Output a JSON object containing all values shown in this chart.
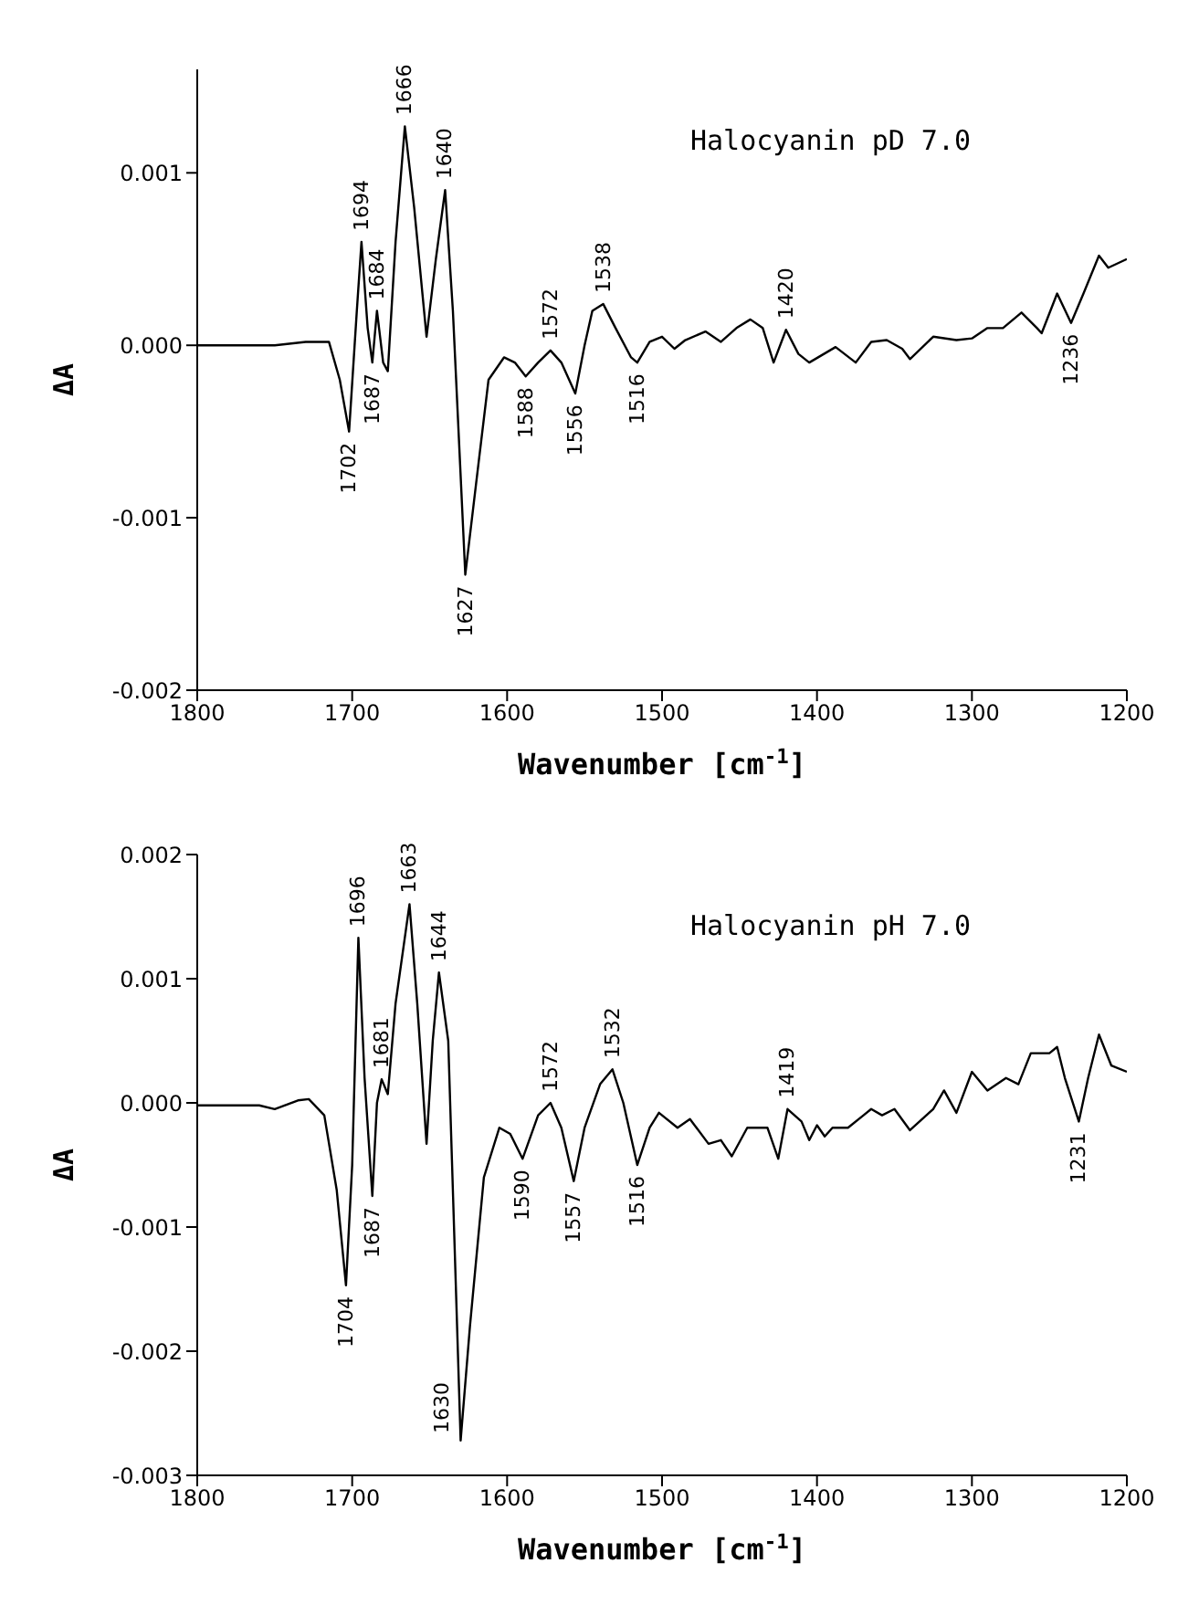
{
  "chart_data": [
    {
      "type": "line",
      "xlabel": "Wavenumber [cm$^{-1}$]",
      "ylabel": "ΔA",
      "xlim": [
        1800,
        1200
      ],
      "xticks": [
        1800,
        1700,
        1600,
        1500,
        1400,
        1300,
        1200
      ],
      "ylim": [
        -0.002,
        0.0016
      ],
      "yticks": [
        {
          "value": -0.002,
          "label": "-0.002"
        },
        {
          "value": -0.001,
          "label": "-0.001"
        },
        {
          "value": 0,
          "label": "0.000"
        },
        {
          "value": 0.001,
          "label": "0.001"
        }
      ],
      "series": [
        {
          "color": "#000000",
          "x": [
            1800,
            1750,
            1730,
            1715,
            1708,
            1702,
            1697,
            1694,
            1690,
            1687,
            1684,
            1680,
            1677,
            1672,
            1666,
            1660,
            1652,
            1646,
            1640,
            1635,
            1627,
            1620,
            1612,
            1602,
            1595,
            1588,
            1580,
            1572,
            1565,
            1556,
            1550,
            1545,
            1538,
            1530,
            1520,
            1516,
            1508,
            1500,
            1492,
            1485,
            1472,
            1462,
            1452,
            1443,
            1435,
            1428,
            1420,
            1412,
            1405,
            1388,
            1375,
            1365,
            1355,
            1345,
            1340,
            1325,
            1310,
            1300,
            1290,
            1280,
            1268,
            1258,
            1255,
            1245,
            1236,
            1228,
            1218,
            1212,
            1200
          ],
          "values": [
            0,
            0,
            2e-05,
            2e-05,
            -0.0002,
            -0.0005,
            0.0002,
            0.0006,
            0.0001,
            -0.0001,
            0.0002,
            -0.0001,
            -0.00015,
            0.0006,
            0.00127,
            0.0008,
            5e-05,
            0.0005,
            0.0009,
            0.0002,
            -0.00133,
            -0.0008,
            -0.0002,
            -7e-05,
            -0.0001,
            -0.00018,
            -0.0001,
            -3e-05,
            -0.0001,
            -0.00028,
            0,
            0.0002,
            0.00024,
            0.0001,
            -7e-05,
            -0.0001,
            2e-05,
            5e-05,
            -2e-05,
            3e-05,
            8e-05,
            2e-05,
            0.0001,
            0.00015,
            0.0001,
            -0.0001,
            9e-05,
            -5e-05,
            -0.0001,
            -1e-05,
            -0.0001,
            2e-05,
            3e-05,
            -2e-05,
            -8e-05,
            5e-05,
            3e-05,
            4e-05,
            0.0001,
            0.0001,
            0.00019,
            0.0001,
            7e-05,
            0.0003,
            0.00013,
            0.0003,
            0.00052,
            0.00045,
            0.0005
          ]
        }
      ],
      "annotations": [
        "Halocyanin pD 7.0",
        {
          "text": "1702",
          "x": 1702,
          "y": -0.0005
        },
        {
          "text": "1694",
          "x": 1694,
          "y": 0.0006
        },
        {
          "text": "1687",
          "x": 1687,
          "y": -0.0001
        },
        {
          "text": "1684",
          "x": 1684,
          "y": 0.0002
        },
        {
          "text": "1666",
          "x": 1666,
          "y": 0.00127
        },
        {
          "text": "1640",
          "x": 1640,
          "y": 0.0009
        },
        {
          "text": "1627",
          "x": 1627,
          "y": -0.00133
        },
        {
          "text": "1588",
          "x": 1588,
          "y": -0.00018
        },
        {
          "text": "1572",
          "x": 1572,
          "y": -3e-05
        },
        {
          "text": "1556",
          "x": 1556,
          "y": -0.00028
        },
        {
          "text": "1538",
          "x": 1538,
          "y": 0.00024
        },
        {
          "text": "1516",
          "x": 1516,
          "y": -0.0001
        },
        {
          "text": "1420",
          "x": 1420,
          "y": 9e-05
        },
        {
          "text": "1236",
          "x": 1236,
          "y": 0.00013
        }
      ]
    },
    {
      "type": "line",
      "xlabel": "Wavenumber [cm$^{-1}$]",
      "ylabel": "ΔA",
      "xlim": [
        1800,
        1200
      ],
      "xticks": [
        1800,
        1700,
        1600,
        1500,
        1400,
        1300,
        1200
      ],
      "ylim": [
        -0.003,
        0.002
      ],
      "yticks": [
        {
          "value": -0.003,
          "label": "-0.003"
        },
        {
          "value": -0.002,
          "label": "-0.002"
        },
        {
          "value": -0.001,
          "label": "-0.001"
        },
        {
          "value": 0,
          "label": "0.000"
        },
        {
          "value": 0.001,
          "label": "0.001"
        },
        {
          "value": 0.002,
          "label": "0.002"
        }
      ],
      "series": [
        {
          "color": "#000000",
          "x": [
            1800,
            1760,
            1750,
            1735,
            1728,
            1718,
            1710,
            1704,
            1700,
            1696,
            1692,
            1687,
            1684,
            1681,
            1677,
            1672,
            1663,
            1658,
            1652,
            1648,
            1644,
            1638,
            1630,
            1624,
            1615,
            1605,
            1598,
            1590,
            1580,
            1572,
            1565,
            1557,
            1550,
            1540,
            1532,
            1525,
            1516,
            1508,
            1502,
            1490,
            1482,
            1470,
            1462,
            1455,
            1445,
            1432,
            1425,
            1419,
            1410,
            1405,
            1400,
            1395,
            1390,
            1380,
            1370,
            1365,
            1358,
            1350,
            1340,
            1325,
            1318,
            1310,
            1300,
            1290,
            1278,
            1270,
            1262,
            1250,
            1245,
            1240,
            1231,
            1225,
            1218,
            1210,
            1200
          ],
          "values": [
            -2e-05,
            -2e-05,
            -5e-05,
            2e-05,
            3e-05,
            -0.0001,
            -0.0007,
            -0.00147,
            -0.0005,
            0.00133,
            0.0002,
            -0.00075,
            0,
            0.00019,
            7e-05,
            0.0008,
            0.0016,
            0.0008,
            -0.00033,
            0.0005,
            0.00105,
            0.0005,
            -0.00272,
            -0.0018,
            -0.0006,
            -0.0002,
            -0.00025,
            -0.00045,
            -0.0001,
            0,
            -0.0002,
            -0.00063,
            -0.0002,
            0.00015,
            0.00027,
            0,
            -0.0005,
            -0.0002,
            -8e-05,
            -0.0002,
            -0.00013,
            -0.00033,
            -0.0003,
            -0.00043,
            -0.0002,
            -0.0002,
            -0.00045,
            -5e-05,
            -0.00015,
            -0.0003,
            -0.00018,
            -0.00027,
            -0.0002,
            -0.0002,
            -0.0001,
            -5e-05,
            -0.0001,
            -5e-05,
            -0.00022,
            -5e-05,
            0.0001,
            -8e-05,
            0.00025,
            0.0001,
            0.0002,
            0.00015,
            0.0004,
            0.0004,
            0.00045,
            0.0002,
            -0.00015,
            0.0002,
            0.00055,
            0.0003,
            0.00025
          ]
        }
      ],
      "annotations": [
        "Halocyanin pH 7.0",
        {
          "text": "1704",
          "x": 1704,
          "y": -0.00147
        },
        {
          "text": "1696",
          "x": 1696,
          "y": 0.00133
        },
        {
          "text": "1687",
          "x": 1687,
          "y": -0.00075
        },
        {
          "text": "1681",
          "x": 1681,
          "y": 0.00019
        },
        {
          "text": "1663",
          "x": 1663,
          "y": 0.0016
        },
        {
          "text": "1644",
          "x": 1644,
          "y": 0.00105
        },
        {
          "text": "1630",
          "x": 1630,
          "y": -0.00272
        },
        {
          "text": "1590",
          "x": 1590,
          "y": -0.00045
        },
        {
          "text": "1572",
          "x": 1572,
          "y": 0
        },
        {
          "text": "1557",
          "x": 1557,
          "y": -0.00063
        },
        {
          "text": "1532",
          "x": 1532,
          "y": 0.00027
        },
        {
          "text": "1516",
          "x": 1516,
          "y": -0.0005
        },
        {
          "text": "1419",
          "x": 1419,
          "y": -5e-05
        },
        {
          "text": "1231",
          "x": 1231,
          "y": -0.00015
        }
      ]
    }
  ]
}
